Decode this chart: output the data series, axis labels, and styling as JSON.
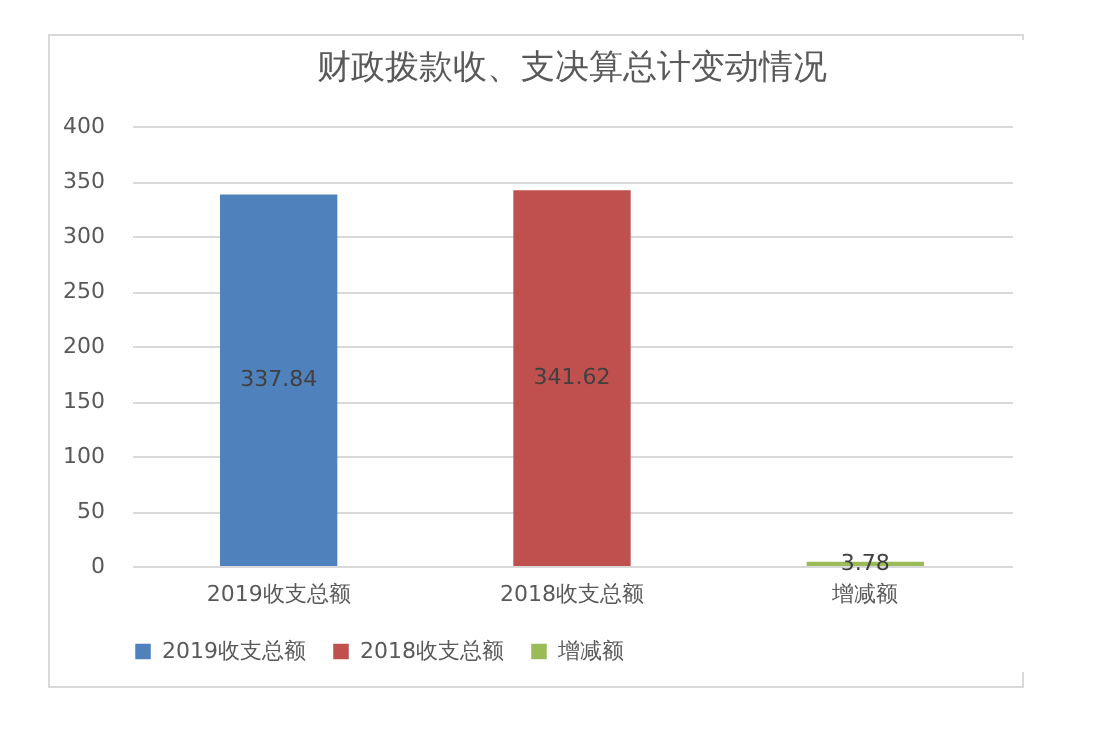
{
  "chart_data": {
    "type": "bar",
    "title": "财政拨款收、支决算总计变动情况",
    "categories": [
      "2019收支总额",
      "2018收支总额",
      "增减额"
    ],
    "series": [
      {
        "name": "2019收支总额",
        "color": "#4f81bd",
        "values": [
          337.84,
          null,
          null
        ]
      },
      {
        "name": "2018收支总额",
        "color": "#c0504d",
        "values": [
          null,
          341.62,
          null
        ]
      },
      {
        "name": "增减额",
        "color": "#9bbb59",
        "values": [
          null,
          null,
          3.78
        ]
      }
    ],
    "ylim": [
      0,
      400
    ],
    "yticks": [
      0,
      50,
      100,
      150,
      200,
      250,
      300,
      350,
      400
    ],
    "grid": "y",
    "legend": "bottom",
    "data_labels": true
  }
}
